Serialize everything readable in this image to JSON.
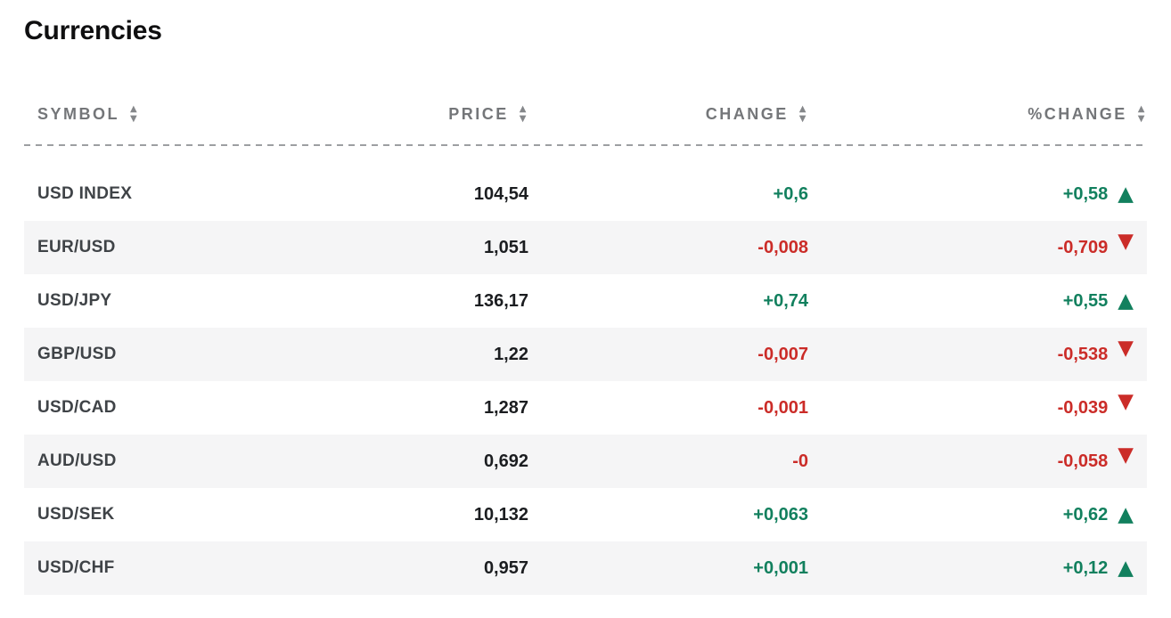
{
  "page": {
    "title": "Currencies"
  },
  "table": {
    "columns": [
      {
        "id": "symbol",
        "label": "SYMBOL",
        "sortable": true
      },
      {
        "id": "price",
        "label": "PRICE",
        "sortable": true
      },
      {
        "id": "change",
        "label": "CHANGE",
        "sortable": true
      },
      {
        "id": "pct_change",
        "label": "%CHANGE",
        "sortable": true
      }
    ],
    "rows": [
      {
        "symbol": "USD INDEX",
        "price": "104,54",
        "change": "+0,6",
        "pct_change": "+0,58",
        "direction": "up"
      },
      {
        "symbol": "EUR/USD",
        "price": "1,051",
        "change": "-0,008",
        "pct_change": "-0,709",
        "direction": "down"
      },
      {
        "symbol": "USD/JPY",
        "price": "136,17",
        "change": "+0,74",
        "pct_change": "+0,55",
        "direction": "up"
      },
      {
        "symbol": "GBP/USD",
        "price": "1,22",
        "change": "-0,007",
        "pct_change": "-0,538",
        "direction": "down"
      },
      {
        "symbol": "USD/CAD",
        "price": "1,287",
        "change": "-0,001",
        "pct_change": "-0,039",
        "direction": "down"
      },
      {
        "symbol": "AUD/USD",
        "price": "0,692",
        "change": "-0",
        "pct_change": "-0,058",
        "direction": "down"
      },
      {
        "symbol": "USD/SEK",
        "price": "10,132",
        "change": "+0,063",
        "pct_change": "+0,62",
        "direction": "up"
      },
      {
        "symbol": "USD/CHF",
        "price": "0,957",
        "change": "+0,001",
        "pct_change": "+0,12",
        "direction": "up"
      }
    ]
  },
  "icons": {
    "sort_up_triangle": "▲",
    "sort_down_triangle": "▼",
    "up_triangle": "▲",
    "down_triangle": "▼"
  },
  "colors": {
    "positive": "#12805e",
    "negative": "#cb2c28",
    "alt_row_bg": "#f5f5f6",
    "header_text": "#747679",
    "symbol_text": "#3f4347",
    "price_text": "#1b1d20",
    "title_text": "#0f0f10",
    "divider": "#9d9fa2",
    "sort_icon": "#85878a"
  }
}
